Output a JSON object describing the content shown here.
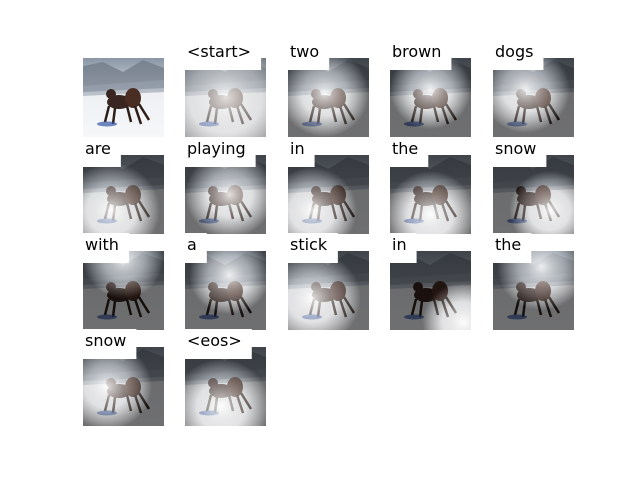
{
  "words": [
    "<start>",
    "two",
    "brown",
    "dogs",
    "are",
    "playing",
    "in",
    "the",
    "snow",
    "with",
    "a",
    "stick",
    "in",
    "the",
    "snow",
    "<eos>"
  ]
}
